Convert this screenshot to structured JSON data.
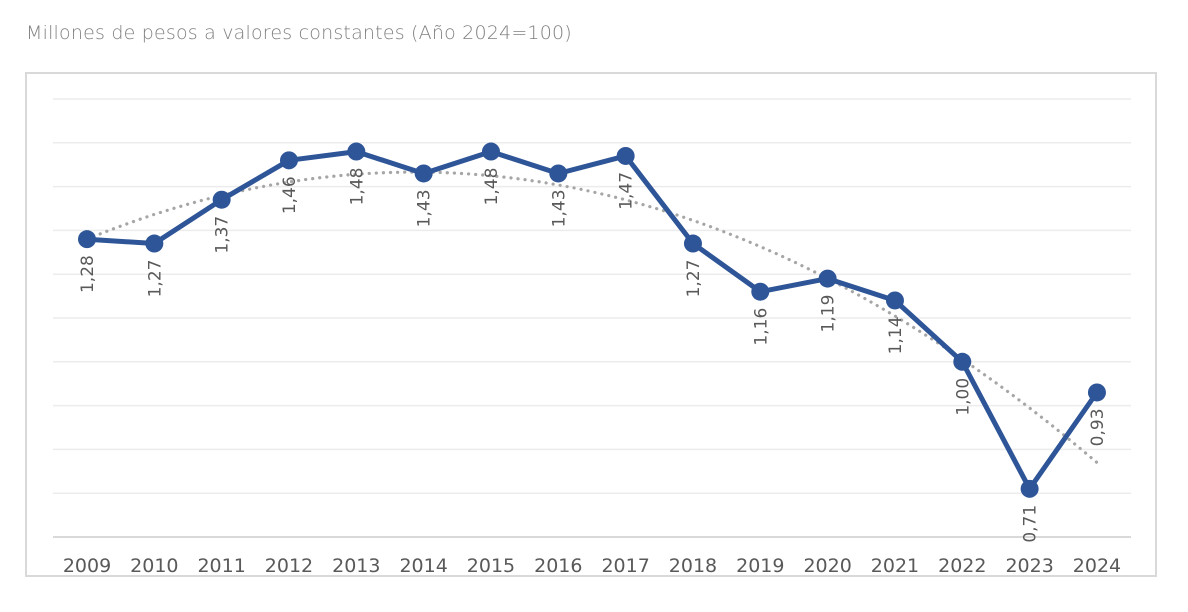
{
  "subtitle": "Millones de pesos a valores constantes (Año 2024=100)",
  "colors": {
    "series": "#2e5597",
    "trend": "#a6a6a6",
    "grid": "#ececec",
    "axis": "#d9d9d9",
    "text": "#595959"
  },
  "chart_data": {
    "type": "line",
    "title": "",
    "subtitle": "Millones de pesos a valores constantes (Año 2024=100)",
    "xlabel": "",
    "ylabel": "",
    "categories": [
      "2009",
      "2010",
      "2011",
      "2012",
      "2013",
      "2014",
      "2015",
      "2016",
      "2017",
      "2018",
      "2019",
      "2020",
      "2021",
      "2022",
      "2023",
      "2024"
    ],
    "series": [
      {
        "name": "Millones de pesos",
        "values": [
          1.28,
          1.27,
          1.37,
          1.46,
          1.48,
          1.43,
          1.48,
          1.43,
          1.47,
          1.27,
          1.16,
          1.19,
          1.14,
          1.0,
          0.71,
          0.93
        ],
        "labels": [
          "1,28",
          "1,27",
          "1,37",
          "1,46",
          "1,48",
          "1,43",
          "1,48",
          "1,43",
          "1,47",
          "1,27",
          "1,16",
          "1,19",
          "1,14",
          "1,00",
          "0,71",
          "0,93"
        ]
      }
    ],
    "trendline": {
      "type": "polynomial",
      "order": 2,
      "style": "dotted",
      "coefficients_t_from_2009": [
        1.28,
        0.0629,
        -0.00646
      ]
    },
    "ylim": [
      0.6,
      1.6
    ],
    "ytick_step": 0.1,
    "y_axis_labels_visible": false,
    "grid": true,
    "legend": "none"
  }
}
